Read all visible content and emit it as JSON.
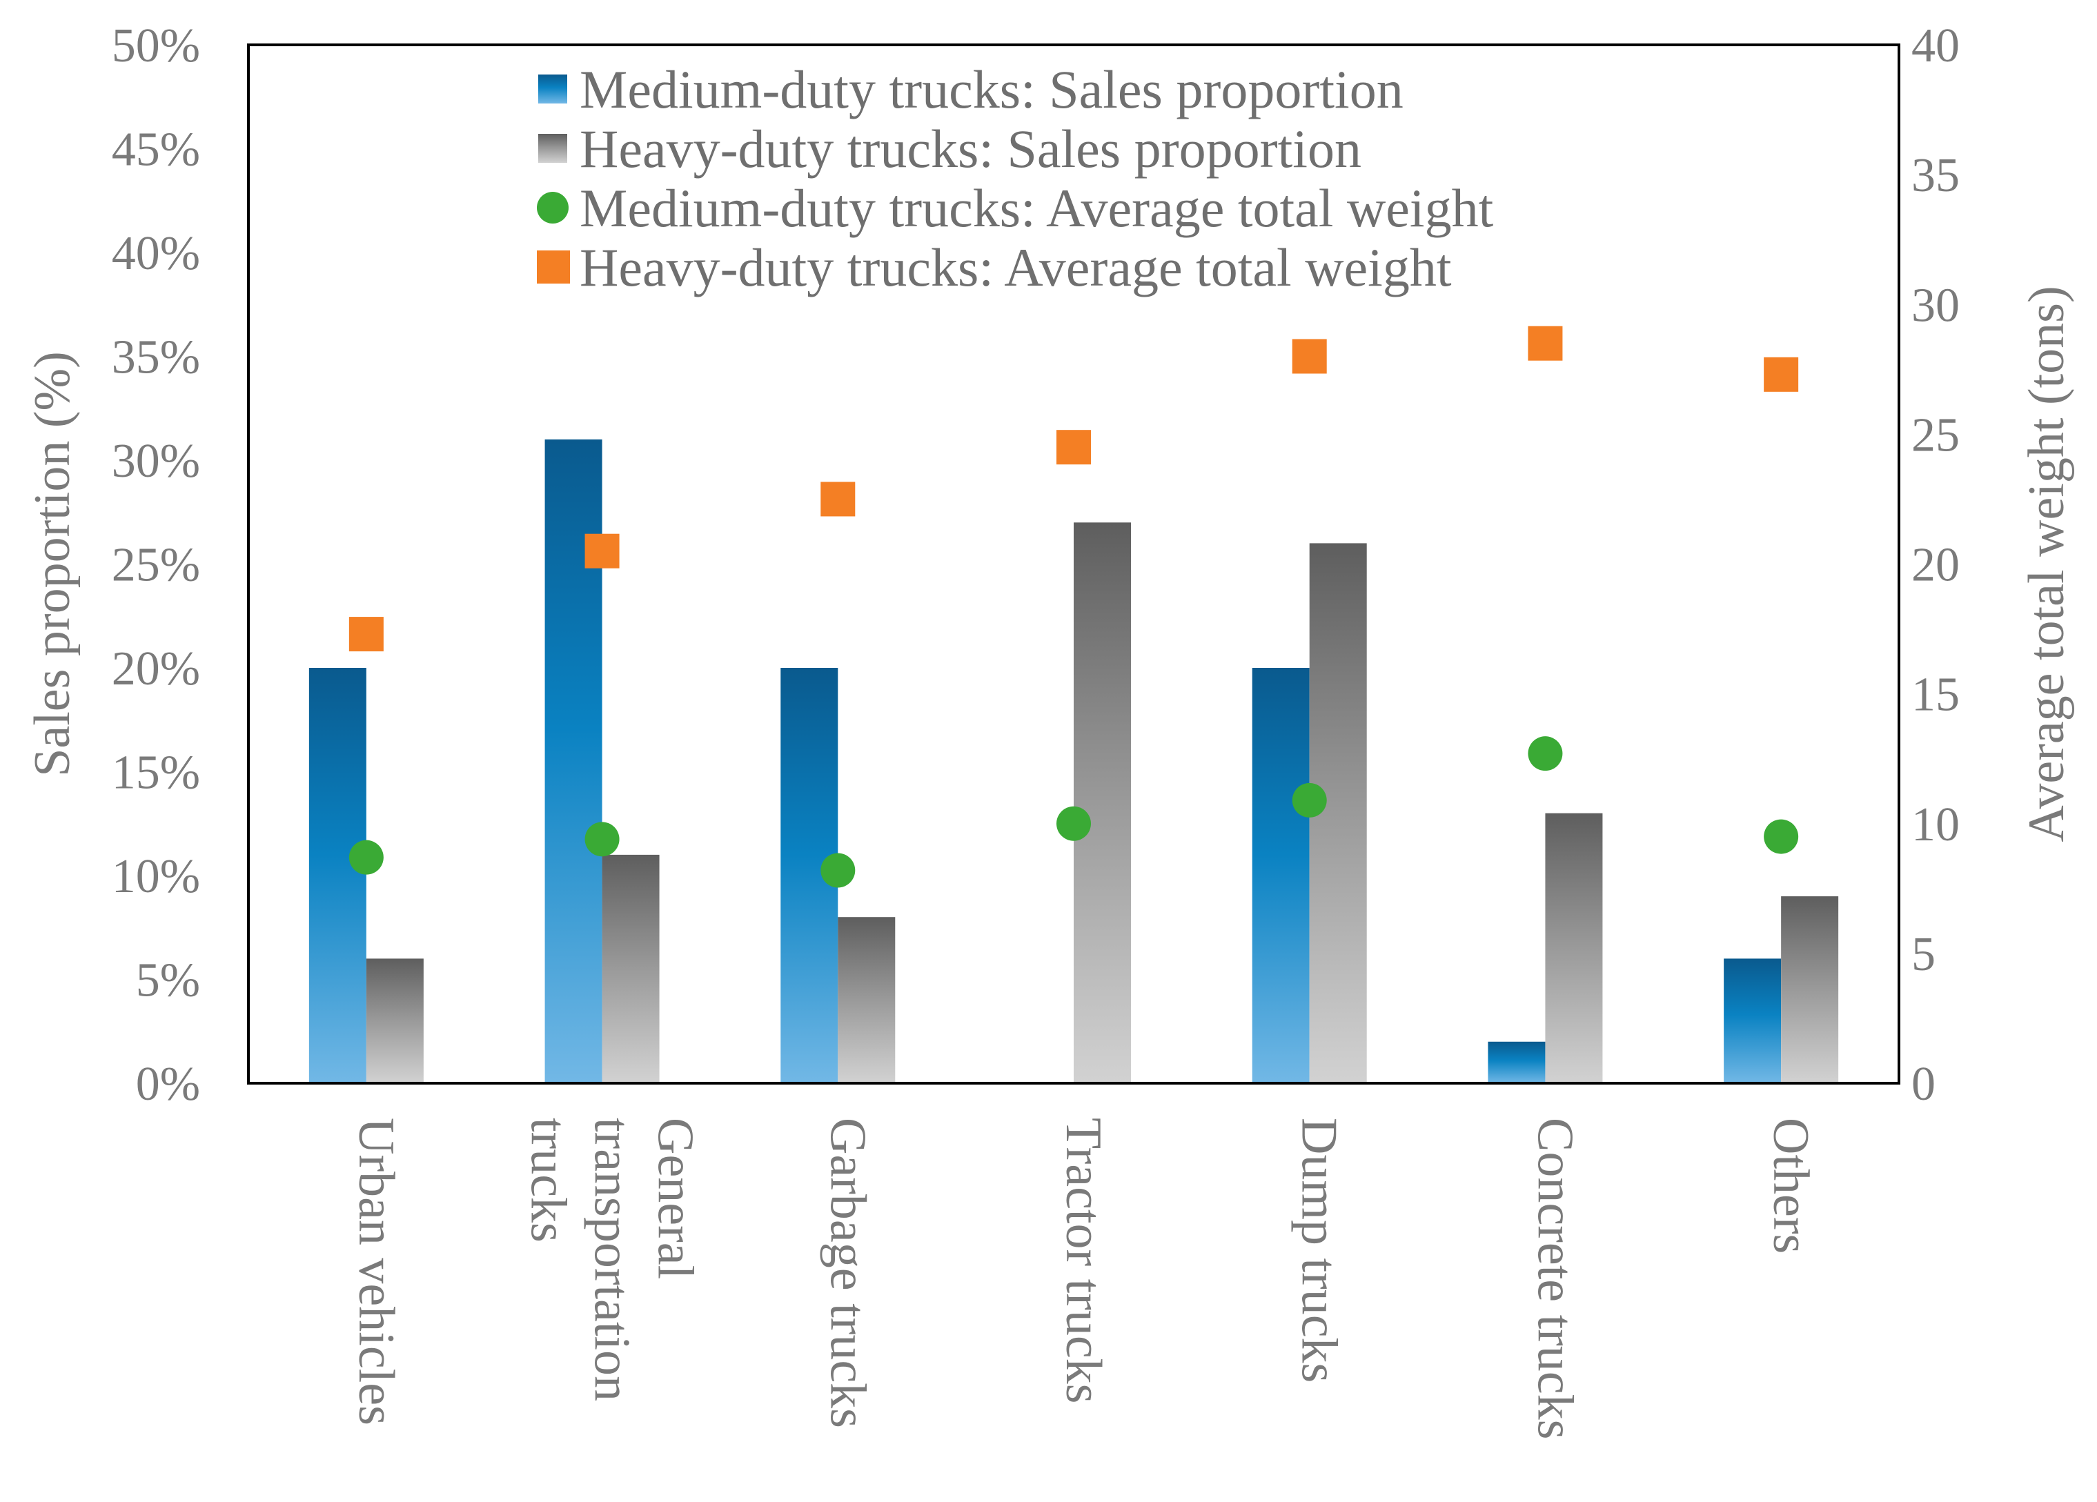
{
  "chart_data": {
    "type": "bar",
    "categories": [
      [
        "Urban vehicles"
      ],
      [
        "General",
        "transportation",
        "trucks"
      ],
      [
        "Garbage trucks"
      ],
      [
        "Tractor trucks"
      ],
      [
        "Dump trucks"
      ],
      [
        "Concrete trucks"
      ],
      [
        "Others"
      ]
    ],
    "series": [
      {
        "name": "Medium-duty trucks: Sales proportion",
        "kind": "bar",
        "axis": "left",
        "values": [
          20,
          31,
          20,
          0,
          20,
          2,
          6
        ],
        "color": "#0a79b8"
      },
      {
        "name": "Heavy-duty trucks: Sales proportion",
        "kind": "bar",
        "axis": "left",
        "values": [
          6,
          11,
          8,
          27,
          26,
          13,
          9
        ],
        "color": "#8a8a8a"
      },
      {
        "name": "Medium-duty trucks: Average total weight",
        "kind": "scatter",
        "marker": "circle",
        "axis": "right",
        "values": [
          8.7,
          9.4,
          8.2,
          10.0,
          10.9,
          12.7,
          9.5
        ],
        "color": "#3aaa35"
      },
      {
        "name": "Heavy-duty trucks: Average total weight",
        "kind": "scatter",
        "marker": "square",
        "axis": "right",
        "values": [
          17.3,
          20.5,
          22.5,
          24.5,
          28.0,
          28.5,
          27.3
        ],
        "color": "#f47f24"
      }
    ],
    "ylabel": "Sales proportion (%)",
    "ylim": [
      0,
      50
    ],
    "yticks": [
      "0%",
      "5%",
      "10%",
      "15%",
      "20%",
      "25%",
      "30%",
      "35%",
      "40%",
      "45%",
      "50%"
    ],
    "y2label": "Average total weight (tons)",
    "y2lim": [
      0,
      40
    ],
    "y2ticks": [
      "0",
      "5",
      "10",
      "15",
      "20",
      "25",
      "30",
      "35",
      "40"
    ],
    "legend_position": "top-center",
    "grid": false
  }
}
